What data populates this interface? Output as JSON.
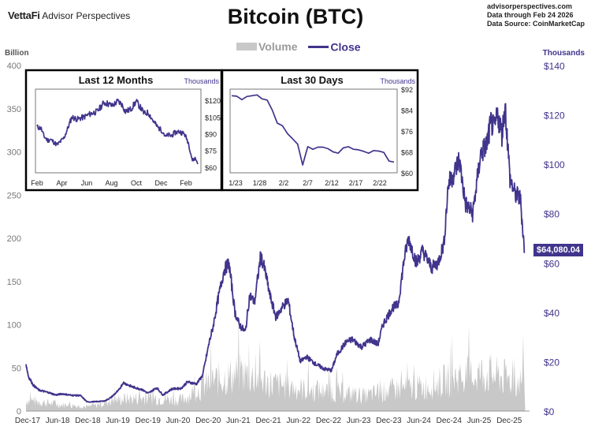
{
  "header": {
    "brand_name": "VettaFi",
    "brand_sub": "Advisor Perspectives",
    "title": "Bitcoin (BTC)",
    "meta_line1": "advisorperspectives.com",
    "meta_line2": "Data through Feb 24 2026",
    "meta_line3": "Data Source: CoinMarketCap"
  },
  "legend": {
    "volume": "Volume",
    "close": "Close"
  },
  "price_label": "$64,080.04",
  "colors": {
    "close": "#40348c",
    "volume": "#c8c8c8",
    "left_axis": "#777777"
  },
  "chart_data": [
    {
      "type": "line",
      "title": "Bitcoin (BTC)",
      "ylabel_left": "Billion",
      "ylabel_right": "Thousands",
      "ylim_left": [
        0,
        400
      ],
      "ylim_right": [
        0,
        140
      ],
      "left_ticks": [
        "0",
        "50",
        "100",
        "150",
        "200",
        "250",
        "300",
        "350",
        "400"
      ],
      "right_ticks": [
        "$0",
        "$20",
        "$40",
        "$60",
        "$80",
        "$100",
        "$120",
        "$140"
      ],
      "x_ticks": [
        "Dec-17",
        "Jun-18",
        "Dec-18",
        "Jun-19",
        "Dec-19",
        "Jun-20",
        "Dec-20",
        "Jun-21",
        "Dec-21",
        "Jun-22",
        "Dec-22",
        "Jun-23",
        "Dec-23",
        "Jun-24",
        "Dec-24",
        "Jun-25",
        "Dec-25"
      ],
      "series": [
        {
          "name": "Close",
          "axis": "right",
          "x": [
            2017.96,
            2018.0,
            2018.08,
            2018.17,
            2018.25,
            2018.33,
            2018.45,
            2018.55,
            2018.7,
            2018.85,
            2018.96,
            2019.1,
            2019.25,
            2019.35,
            2019.48,
            2019.55,
            2019.7,
            2019.85,
            2019.96,
            2020.1,
            2020.2,
            2020.35,
            2020.5,
            2020.6,
            2020.75,
            2020.85,
            2020.96,
            2021.02,
            2021.1,
            2021.2,
            2021.28,
            2021.38,
            2021.45,
            2021.55,
            2021.62,
            2021.7,
            2021.8,
            2021.87,
            2021.95,
            2022.05,
            2022.15,
            2022.25,
            2022.35,
            2022.45,
            2022.55,
            2022.7,
            2022.85,
            2022.96,
            2023.05,
            2023.2,
            2023.3,
            2023.45,
            2023.6,
            2023.72,
            2023.8,
            2023.96,
            2024.05,
            2024.15,
            2024.22,
            2024.35,
            2024.45,
            2024.6,
            2024.7,
            2024.8,
            2024.87,
            2024.96,
            2025.05,
            2025.15,
            2025.27,
            2025.4,
            2025.5,
            2025.57,
            2025.62,
            2025.68,
            2025.75,
            2025.8,
            2025.88,
            2025.96,
            2026.05,
            2026.12
          ],
          "values": [
            19.0,
            14.0,
            10.5,
            8.5,
            8.0,
            7.5,
            6.5,
            7.0,
            6.4,
            6.3,
            3.7,
            3.8,
            4.1,
            5.5,
            8.5,
            11.5,
            9.8,
            8.8,
            7.2,
            9.5,
            6.5,
            9.0,
            9.2,
            11.8,
            11.0,
            14.5,
            28.0,
            34.0,
            45.0,
            57.0,
            60.0,
            40.0,
            35.0,
            32.0,
            47.0,
            44.0,
            63.0,
            57.0,
            47.0,
            38.0,
            42.0,
            45.0,
            30.0,
            20.0,
            22.0,
            19.0,
            17.0,
            16.5,
            23.0,
            28.0,
            29.0,
            26.0,
            29.0,
            27.0,
            35.0,
            42.0,
            43.0,
            62.0,
            70.0,
            60.0,
            65.0,
            58.0,
            60.0,
            68.0,
            92.0,
            96.0,
            102.0,
            84.0,
            80.0,
            104.0,
            108.0,
            117.0,
            114.0,
            120.0,
            112.0,
            124.0,
            94.0,
            88.0,
            86.0,
            64.08
          ]
        },
        {
          "name": "Volume",
          "axis": "left",
          "x": [
            2018.0,
            2018.5,
            2019.0,
            2019.5,
            2020.0,
            2020.5,
            2021.0,
            2021.5,
            2022.0,
            2022.5,
            2023.0,
            2023.5,
            2024.0,
            2024.5,
            2025.0,
            2025.5,
            2026.0
          ],
          "values": [
            20,
            12,
            8,
            22,
            25,
            20,
            55,
            70,
            50,
            40,
            35,
            28,
            40,
            45,
            62,
            70,
            55
          ]
        }
      ]
    },
    {
      "type": "line",
      "title": "Last 12 Months",
      "ylabel": "Thousands",
      "ylim": [
        55,
        130
      ],
      "y_ticks": [
        "$60",
        "$75",
        "$90",
        "$105",
        "$120"
      ],
      "x_ticks": [
        "Feb",
        "Apr",
        "Jun",
        "Aug",
        "Oct",
        "Dec",
        "Feb"
      ],
      "series": [
        {
          "name": "Close",
          "x": [
            0,
            0.3,
            0.5,
            0.8,
            1.0,
            1.3,
            1.5,
            2.0,
            2.3,
            2.6,
            3.0,
            3.5,
            4.0,
            4.5,
            5.0,
            5.3,
            5.6,
            6.0,
            6.3,
            6.6,
            7.0,
            7.4,
            7.7,
            8.0,
            8.3,
            8.7,
            9.0,
            9.4,
            9.6,
            9.8,
            10.0,
            10.3,
            10.6,
            11.0,
            11.3,
            11.6,
            11.8,
            12.0
          ],
          "values": [
            96,
            95,
            88,
            84,
            85,
            82,
            80,
            86,
            95,
            105,
            103,
            105,
            108,
            110,
            118,
            117,
            115,
            119,
            117,
            110,
            112,
            119,
            114,
            108,
            109,
            101,
            96,
            92,
            87,
            89,
            88,
            91,
            92,
            90,
            82,
            66,
            68,
            64
          ]
        }
      ]
    },
    {
      "type": "line",
      "title": "Last 30 Days",
      "ylabel": "Thousands",
      "ylim": [
        60,
        92
      ],
      "y_ticks": [
        "$60",
        "$68",
        "$76",
        "$84",
        "$92"
      ],
      "x_ticks": [
        "1/23",
        "1/28",
        "2/2",
        "2/7",
        "2/12",
        "2/17",
        "2/22"
      ],
      "series": [
        {
          "name": "Close",
          "x": [
            0,
            1,
            2,
            3,
            4,
            5,
            6,
            7,
            8,
            9,
            10,
            11,
            12,
            13,
            14,
            15,
            16,
            17,
            18,
            19,
            20,
            21,
            22,
            23,
            24,
            25,
            26,
            27,
            28,
            29,
            30,
            31,
            32
          ],
          "values": [
            89.5,
            89.3,
            88,
            89.2,
            89.5,
            89.8,
            88.3,
            87.8,
            84,
            79,
            78,
            75,
            73,
            71,
            63,
            70,
            69,
            69.8,
            69.8,
            69.2,
            68,
            67.5,
            69.5,
            70,
            69,
            68.8,
            68.2,
            67.5,
            68.5,
            68.3,
            67.8,
            64.5,
            64.1
          ]
        }
      ]
    }
  ]
}
